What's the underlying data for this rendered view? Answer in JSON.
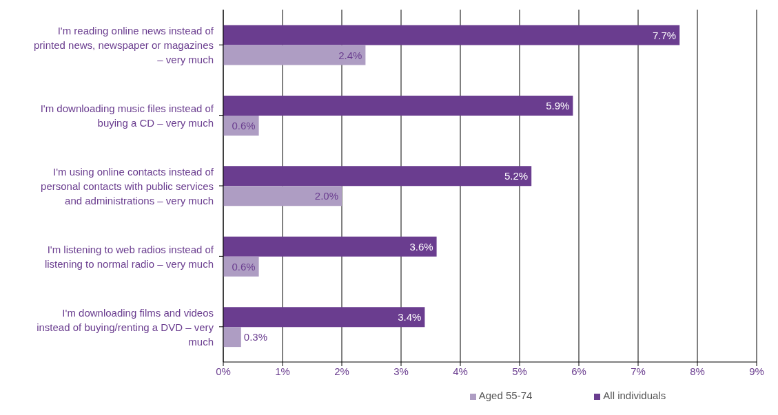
{
  "chart_data": {
    "type": "bar",
    "orientation": "horizontal",
    "categories": [
      "I'm reading online news instead of printed news, newspaper or magazines – very much",
      "I'm downloading music files instead of buying a CD – very much",
      "I'm using online contacts instead of personal contacts with public services and administrations – very much",
      "I'm listening to web radios instead of listening to normal radio – very much",
      "I'm downloading films and videos instead of buying/renting a DVD – very much"
    ],
    "series": [
      {
        "name": "All individuals",
        "color": "#6a3d8f",
        "values": [
          7.7,
          5.9,
          5.2,
          3.6,
          3.4
        ],
        "value_labels": [
          "7.7%",
          "5.9%",
          "5.2%",
          "3.6%",
          "3.4%"
        ]
      },
      {
        "name": "Aged 55-74",
        "color": "#ae9dc3",
        "values": [
          2.4,
          0.6,
          2.0,
          0.6,
          0.3
        ],
        "value_labels": [
          "2.4%",
          "0.6%",
          "2.0%",
          "0.6%",
          "0.3%"
        ]
      }
    ],
    "xlim": [
      0,
      9
    ],
    "xticks": [
      {
        "value": 0,
        "label": "0%"
      },
      {
        "value": 1,
        "label": "1%"
      },
      {
        "value": 2,
        "label": "2%"
      },
      {
        "value": 3,
        "label": "3%"
      },
      {
        "value": 4,
        "label": "4%"
      },
      {
        "value": 5,
        "label": "5%"
      },
      {
        "value": 6,
        "label": "6%"
      },
      {
        "value": 7,
        "label": "7%"
      },
      {
        "value": 8,
        "label": "8%"
      },
      {
        "value": 9,
        "label": "9%"
      }
    ],
    "grid": "x",
    "legend": "bottom"
  }
}
